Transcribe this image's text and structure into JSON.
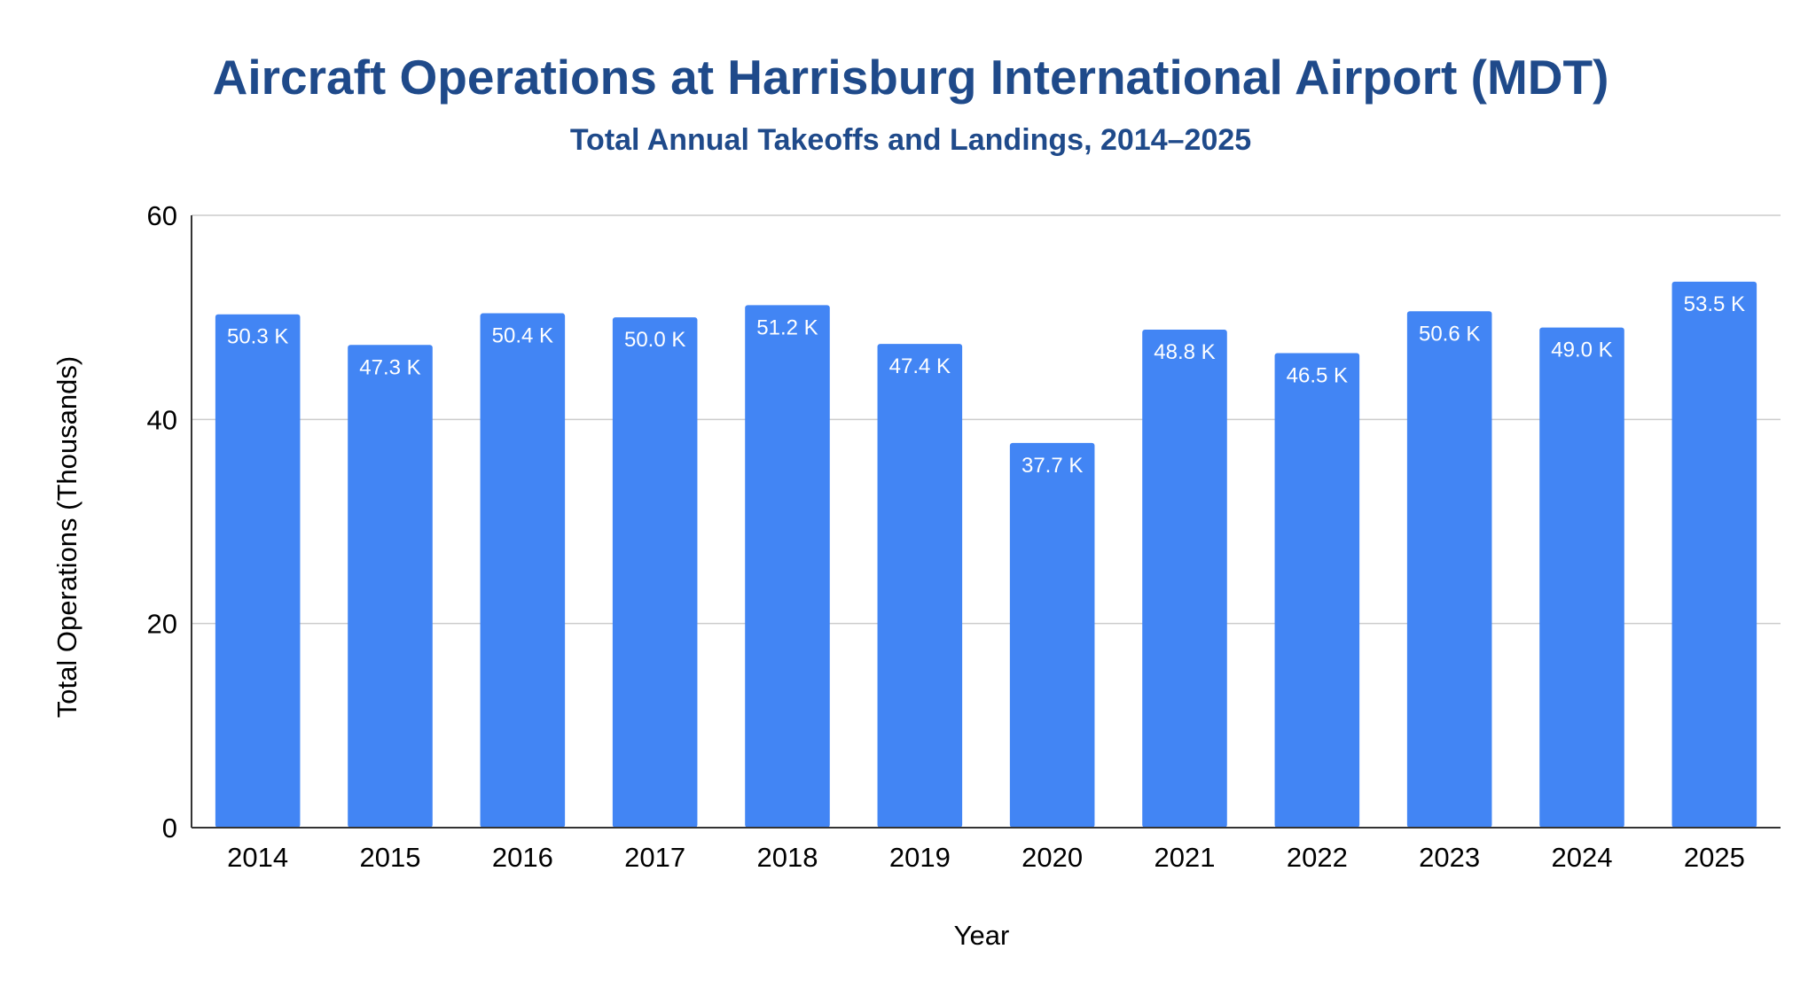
{
  "chart_data": {
    "type": "bar",
    "title": "Aircraft Operations at Harrisburg International Airport (MDT)",
    "subtitle": "Total Annual Takeoffs and Landings, 2014–2025",
    "xlabel": "Year",
    "ylabel": "Total Operations (Thousands)",
    "categories": [
      "2014",
      "2015",
      "2016",
      "2017",
      "2018",
      "2019",
      "2020",
      "2021",
      "2022",
      "2023",
      "2024",
      "2025"
    ],
    "values": [
      50.3,
      47.3,
      50.4,
      50.0,
      51.2,
      47.4,
      37.7,
      48.8,
      46.5,
      50.6,
      49.0,
      53.5
    ],
    "data_labels": [
      "50.3 K",
      "47.3 K",
      "50.4 K",
      "50.0 K",
      "51.2 K",
      "47.4 K",
      "37.7 K",
      "48.8 K",
      "46.5 K",
      "50.6 K",
      "49.0 K",
      "53.5 K"
    ],
    "ylim": [
      0,
      60
    ],
    "yticks": [
      0,
      20,
      40,
      60
    ],
    "grid": true,
    "legend": "none",
    "colors": {
      "bar": "#4285F4",
      "title": "#1F4A8A",
      "grid": "#CCCCCC",
      "axis": "#333333",
      "text": "#000000",
      "data_label": "#FFFFFF"
    }
  }
}
